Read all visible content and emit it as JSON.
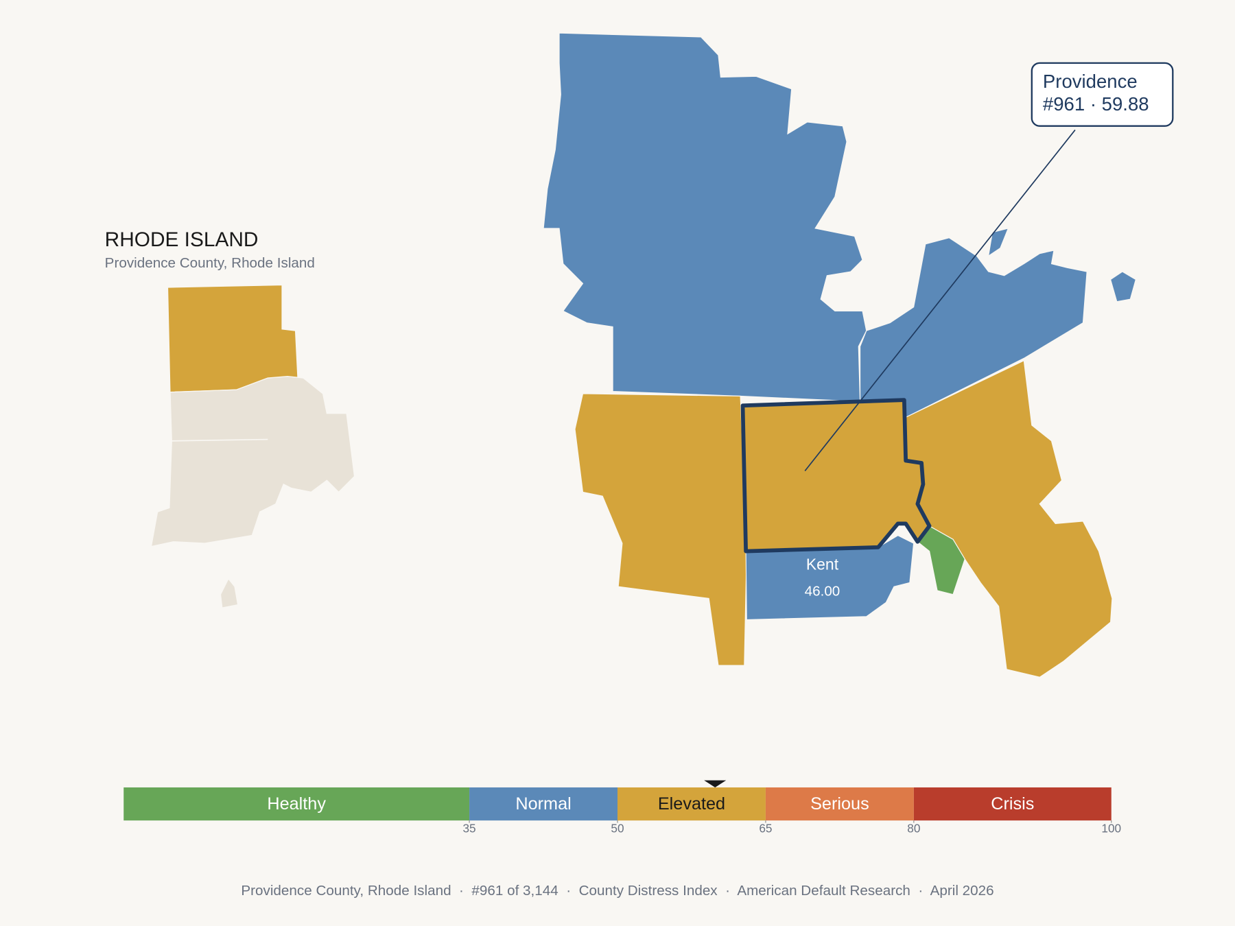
{
  "locator": {
    "title": "RHODE ISLAND",
    "subtitle": "Providence County, Rhode Island"
  },
  "regions": [
    {
      "name": "Providence",
      "callout": "#961 · 59.88",
      "value": 59.88
    },
    {
      "name": "Kent",
      "value": 46,
      "value_label": "46.00"
    }
  ],
  "scale": {
    "range": [
      0,
      100
    ],
    "ticks": [
      35,
      50,
      65,
      80,
      100
    ],
    "bands": [
      {
        "label": "Healthy",
        "color": "#67a657"
      },
      {
        "label": "Normal",
        "color": "#5b89b8"
      },
      {
        "label": "Elevated",
        "color": "#d4a43b"
      },
      {
        "label": "Serious",
        "color": "#dd7a48"
      },
      {
        "label": "Crisis",
        "color": "#b93d2c"
      }
    ]
  },
  "footer": "Providence County, Rhode Island  ·  #961 of 3,144  ·  County Distress Index  ·  American Default Research  ·  April 2026"
}
